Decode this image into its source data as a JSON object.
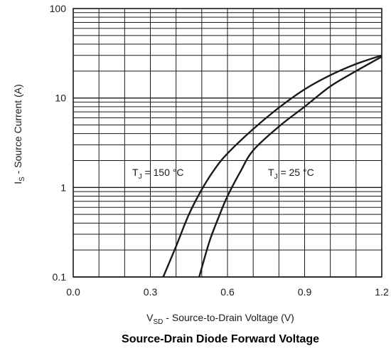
{
  "chart_data": {
    "type": "line",
    "title": "Source-Drain Diode Forward Voltage",
    "xlabel": {
      "main": "V",
      "sub": "SD",
      "rest": " - Source-to-Drain Voltage (V)"
    },
    "ylabel": {
      "main": "I",
      "sub": "S",
      "rest": " - Source Current (A)"
    },
    "xlim": [
      0.0,
      1.2
    ],
    "ylim": [
      0.1,
      100
    ],
    "yscale": "log",
    "grid": true,
    "x_ticks": [
      0.0,
      0.3,
      0.6,
      0.9,
      1.2
    ],
    "x_tick_labels": [
      "0.0",
      "0.3",
      "0.6",
      "0.9",
      "1.2"
    ],
    "y_ticks": [
      0.1,
      1,
      10,
      100
    ],
    "y_tick_labels": [
      "0.1",
      "1",
      "10",
      "100"
    ],
    "series": [
      {
        "label_main": "T",
        "label_sub": "J",
        "label_rest": " = 150 °C",
        "x": [
          0.35,
          0.4,
          0.45,
          0.5,
          0.55,
          0.6,
          0.7,
          0.8,
          0.9,
          1.0,
          1.1,
          1.2
        ],
        "y": [
          0.1,
          0.22,
          0.5,
          0.95,
          1.6,
          2.4,
          4.5,
          7.8,
          12.5,
          18,
          24,
          30
        ]
      },
      {
        "label_main": "T",
        "label_sub": "J",
        "label_rest": " = 25 °C",
        "x": [
          0.49,
          0.53,
          0.57,
          0.6,
          0.65,
          0.7,
          0.8,
          0.9,
          1.0,
          1.1,
          1.2
        ],
        "y": [
          0.1,
          0.25,
          0.5,
          0.8,
          1.5,
          2.6,
          4.8,
          8.0,
          13.5,
          20,
          29
        ]
      }
    ],
    "colors": {
      "line": "#1a1a1a",
      "grid": "#1a1a1a"
    }
  }
}
